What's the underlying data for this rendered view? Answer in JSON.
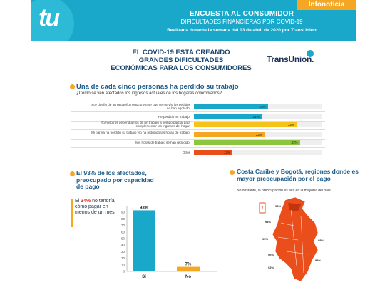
{
  "header": {
    "logo_text": "tu",
    "tag": "Infonoticia",
    "title": "ENCUESTA AL CONSUMIDOR",
    "subtitle": "DIFICULTADES FINANCIERAS POR COVID-19",
    "date_line": "Realizada durante la semana del 13 de abril de 2020 por TransUnion"
  },
  "main_heading": [
    "EL COVID-19 ESTÁ CREANDO",
    "GRANDES DIFICULTADES",
    "ECONÓMICAS PARA LOS CONSUMIDORES"
  ],
  "brand": "TransUnion.",
  "colors": {
    "teal": "#19a8c9",
    "orange": "#f5a623",
    "navy": "#1b5c8c",
    "red": "#e94e1b",
    "green": "#8cc63f",
    "yellow": "#f7c21a"
  },
  "section1": {
    "title": "Una de cada cinco personas ha perdido su trabajo",
    "question": "¿Cómo se ven afectados los ingresos actuales de los hogares colombianos?"
  },
  "section2": {
    "title": "El 93% de los afectados, preocupado por capacidad de pago",
    "callout_pre": "El ",
    "callout_pct": "34%",
    "callout_post": " no tendría cómo pagar en menos de un mes."
  },
  "section3": {
    "title": "Costa Caribe y Bogotá, regiones donde es mayor preocupación por el pago",
    "subtitle": "No obstante, la preocupación es alta en la mayoría del país."
  },
  "chart_data": [
    {
      "type": "bar",
      "orientation": "horizontal",
      "categories": [
        "Soy dueño de un pequeño negocio y tuve que cerrar y/o los pedidos se han agotado.",
        "He perdido mi trabajo.",
        "Yo/nosotros dependíamos de un trabajo a tiempo parcial para complementar los ingresos del hogar.",
        "Mi pareja ha perdido su trabajo y/o ha reducido las horas de trabajo.",
        "Mis horas de trabajo se han reducido.",
        "Otros"
      ],
      "values": [
        23,
        21,
        32,
        22,
        33,
        12
      ],
      "value_labels": [
        "23%",
        "21%",
        "32%",
        "22%",
        "33%",
        "12%"
      ],
      "bar_colors": [
        "#19a8c9",
        "#19a8c9",
        "#f7c21a",
        "#f5a623",
        "#8cc63f",
        "#e94e1b"
      ],
      "xlim": [
        0,
        40
      ]
    },
    {
      "type": "bar",
      "orientation": "vertical",
      "categories": [
        "Sí",
        "No"
      ],
      "values": [
        93,
        7
      ],
      "value_labels": [
        "93%",
        "7%"
      ],
      "bar_colors": [
        "#19a8c9",
        "#f5a623"
      ],
      "ylim": [
        0,
        100
      ],
      "yticks": [
        0,
        10,
        20,
        30,
        40,
        50,
        60,
        70,
        80,
        90
      ]
    }
  ],
  "map": {
    "labels": [
      "93%",
      "94%",
      "95%",
      "96%",
      "92%",
      "88%",
      "94%"
    ]
  }
}
